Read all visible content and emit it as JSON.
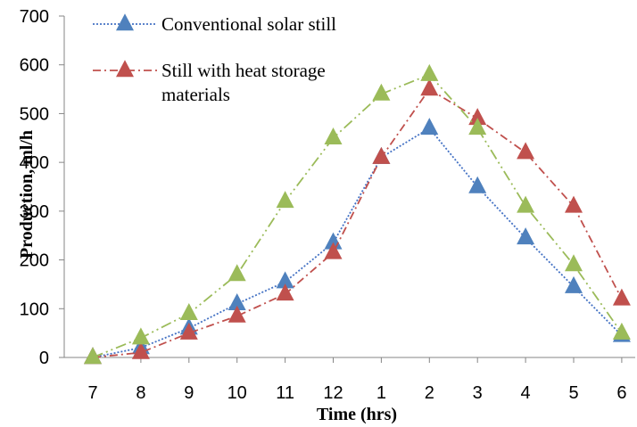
{
  "chart_data": {
    "type": "line",
    "title": "",
    "xlabel": "Time (hrs)",
    "ylabel": "Production, ml/h",
    "categories": [
      "7",
      "8",
      "9",
      "10",
      "11",
      "12",
      "1",
      "2",
      "3",
      "4",
      "5",
      "6"
    ],
    "ylim": [
      0,
      700
    ],
    "yticks": [
      "0",
      "100",
      "200",
      "300",
      "400",
      "500",
      "600",
      "700"
    ],
    "grid": false,
    "legend_position": "top-left",
    "series": [
      {
        "name": "Conventional solar still",
        "values": [
          0,
          20,
          60,
          110,
          155,
          235,
          410,
          470,
          350,
          245,
          145,
          45
        ],
        "color": "#4472c4",
        "marker_color": "#4f81bd",
        "line_style": "dotted"
      },
      {
        "name": "Still with heat storage materials",
        "values": [
          0,
          10,
          50,
          85,
          130,
          215,
          410,
          550,
          490,
          420,
          310,
          120
        ],
        "color": "#c0504d",
        "marker_color": "#c0504d",
        "line_style": "dash-dot"
      },
      {
        "name": "",
        "values": [
          0,
          40,
          90,
          170,
          320,
          450,
          540,
          580,
          470,
          310,
          190,
          50
        ],
        "color": "#9bbb59",
        "marker_color": "#9bbb59",
        "line_style": "dash-dot-dot"
      }
    ]
  }
}
